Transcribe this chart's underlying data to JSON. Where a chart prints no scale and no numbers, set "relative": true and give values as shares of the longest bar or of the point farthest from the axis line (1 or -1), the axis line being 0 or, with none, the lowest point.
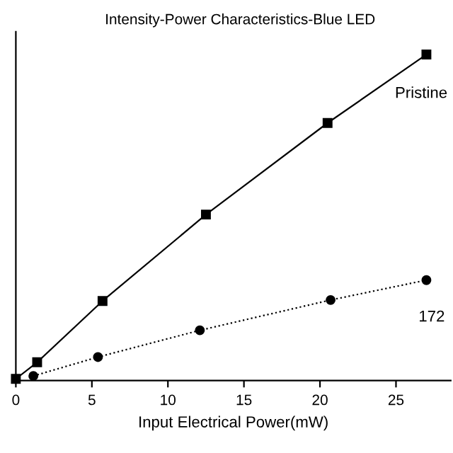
{
  "chart_data": {
    "type": "line",
    "title": "Intensity-Power Characteristics-Blue LED",
    "xlabel": "Input Electrical Power(mW)",
    "relative": true,
    "xlim": [
      0,
      28.6
    ],
    "xticks": [
      0,
      5,
      10,
      15,
      20,
      25
    ],
    "grid": false,
    "legend": false,
    "series": [
      {
        "name": "Pristine",
        "color": "#000000",
        "marker": "square",
        "line_style": "solid",
        "x": [
          0.0,
          1.4,
          5.7,
          12.5,
          20.5,
          27.0
        ],
        "values": [
          0.005,
          0.056,
          0.244,
          0.509,
          0.79,
          1.0
        ]
      },
      {
        "name": "172",
        "color": "#000000",
        "marker": "circle",
        "line_style": "dotted",
        "x": [
          1.15,
          5.4,
          12.1,
          20.7,
          27.0
        ],
        "values": [
          0.014,
          0.072,
          0.154,
          0.247,
          0.308
        ]
      }
    ]
  }
}
